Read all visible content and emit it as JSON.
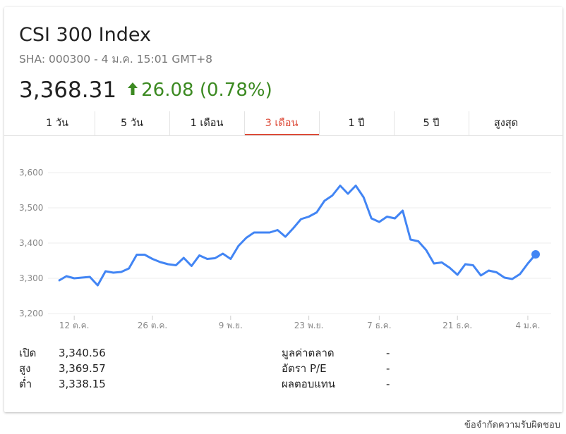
{
  "header": {
    "title": "CSI 300 Index",
    "subtitle": "SHA: 000300 - 4 ม.ค. 15:01 GMT+8",
    "price": "3,368.31",
    "change": "26.08 (0.78%)",
    "change_color": "#3c8a22",
    "direction_icon": "arrow-up-icon"
  },
  "tabs": [
    {
      "label": "1 วัน",
      "active": false
    },
    {
      "label": "5 วัน",
      "active": false
    },
    {
      "label": "1 เดือน",
      "active": false
    },
    {
      "label": "3 เดือน",
      "active": true
    },
    {
      "label": "1 ปี",
      "active": false
    },
    {
      "label": "5 ปี",
      "active": false
    },
    {
      "label": "สูงสุด",
      "active": false
    }
  ],
  "accent_color": "#dd4b39",
  "chart_data": {
    "type": "line",
    "y_ticks": [
      "3,600",
      "3,500",
      "3,400",
      "3,300",
      "3,200"
    ],
    "y_tick_values": [
      3600,
      3500,
      3400,
      3300,
      3200
    ],
    "ylim": [
      3200,
      3600
    ],
    "x_ticks": [
      "12 ต.ค.",
      "26 ต.ค.",
      "9 พ.ย.",
      "23 พ.ย.",
      "7 ธ.ค.",
      "21 ธ.ค.",
      "4 ม.ค."
    ],
    "x_tick_index": [
      2,
      12,
      22,
      32,
      41,
      51,
      60
    ],
    "grid": true,
    "line_color": "#4285f4",
    "series": [
      {
        "values": [
          3293,
          3306,
          3300,
          3302,
          3304,
          3280,
          3320,
          3316,
          3318,
          3328,
          3367,
          3367,
          3355,
          3346,
          3340,
          3337,
          3358,
          3335,
          3365,
          3355,
          3357,
          3370,
          3355,
          3392,
          3415,
          3430,
          3430,
          3430,
          3437,
          3418,
          3442,
          3468,
          3475,
          3487,
          3520,
          3535,
          3563,
          3540,
          3563,
          3530,
          3470,
          3460,
          3475,
          3470,
          3492,
          3410,
          3405,
          3380,
          3342,
          3345,
          3330,
          3310,
          3340,
          3337,
          3308,
          3322,
          3317,
          3302,
          3298,
          3312,
          3342,
          3368
        ]
      }
    ]
  },
  "stats_left": [
    {
      "label": "เปิด",
      "value": "3,340.56"
    },
    {
      "label": "สูง",
      "value": "3,369.57"
    },
    {
      "label": "ต่ำ",
      "value": "3,338.15"
    }
  ],
  "stats_right": [
    {
      "label": "มูลค่าตลาด",
      "value": "-"
    },
    {
      "label": "อัตรา P/E",
      "value": "-"
    },
    {
      "label": "ผลตอบแทน",
      "value": "-"
    }
  ],
  "footer": {
    "disclaimer": "ข้อจำกัดความรับผิดชอบ"
  }
}
